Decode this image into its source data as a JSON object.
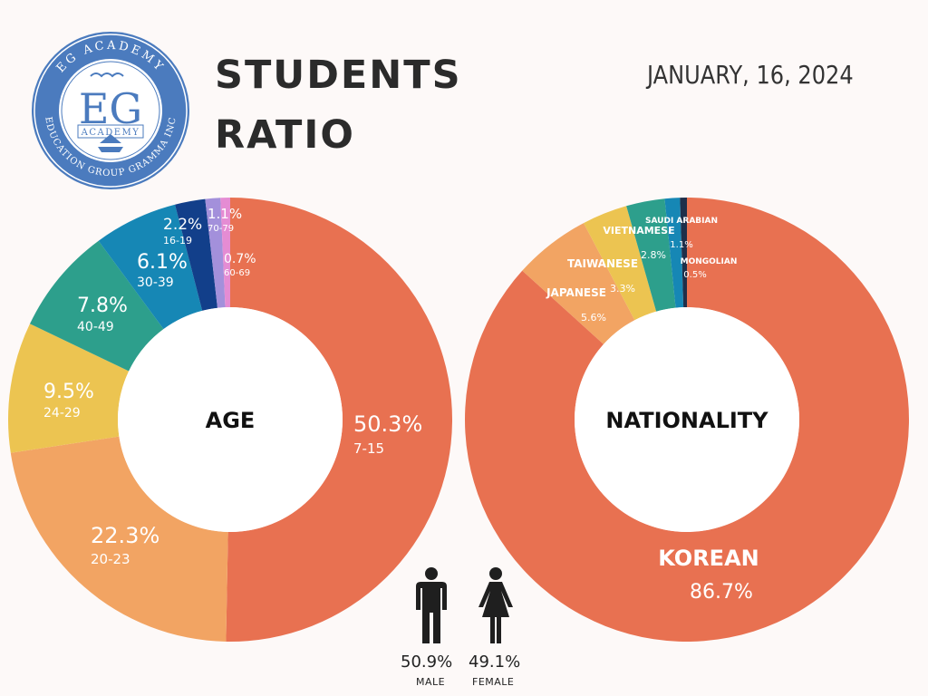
{
  "logo": {
    "ring_text_top": "EG ACADEMY",
    "ring_text_bottom": "EDUCATION GROUP GRAMMA INC",
    "monogram": "EG",
    "banner": "ACADEMY"
  },
  "title_lines": [
    "STUDENTS",
    "RATIO"
  ],
  "date": "JANUARY, 16, 2024",
  "gender": {
    "male": {
      "percent": "50.9%",
      "label": "MALE",
      "icon": "male-person-icon"
    },
    "female": {
      "percent": "49.1%",
      "label": "FEMALE",
      "icon": "female-person-icon"
    }
  },
  "chart_data": [
    {
      "type": "donut",
      "center_label": "AGE",
      "slices": [
        {
          "label": "7-15",
          "value": 50.3,
          "value_text": "50.3%",
          "color": "#e87151"
        },
        {
          "label": "20-23",
          "value": 22.3,
          "value_text": "22.3%",
          "color": "#f2a463"
        },
        {
          "label": "24-29",
          "value": 9.5,
          "value_text": "9.5%",
          "color": "#ecc451"
        },
        {
          "label": "40-49",
          "value": 7.8,
          "value_text": "7.8%",
          "color": "#2d9f8c"
        },
        {
          "label": "30-39",
          "value": 6.1,
          "value_text": "6.1%",
          "color": "#1687b5"
        },
        {
          "label": "16-19",
          "value": 2.2,
          "value_text": "2.2%",
          "color": "#123f8a"
        },
        {
          "label": "70-79",
          "value": 1.1,
          "value_text": "1.1%",
          "color": "#a390db"
        },
        {
          "label": "60-69",
          "value": 0.7,
          "value_text": "0.7%",
          "color": "#e58cd3"
        }
      ]
    },
    {
      "type": "donut",
      "center_label": "NATIONALITY",
      "slices": [
        {
          "label": "KOREAN",
          "value": 86.7,
          "value_text": "86.7%",
          "color": "#e87151"
        },
        {
          "label": "JAPANESE",
          "value": 5.6,
          "value_text": "5.6%",
          "color": "#f2a463"
        },
        {
          "label": "TAIWANESE",
          "value": 3.3,
          "value_text": "3.3%",
          "color": "#ecc451"
        },
        {
          "label": "VIETNAMESE",
          "value": 2.8,
          "value_text": "2.8%",
          "color": "#2d9f8c"
        },
        {
          "label": "SAUDI ARABIAN",
          "value": 1.1,
          "value_text": "1.1%",
          "color": "#1687b5"
        },
        {
          "label": "MONGOLIAN",
          "value": 0.5,
          "value_text": "0.5%",
          "color": "#1e2f4a"
        }
      ]
    }
  ]
}
